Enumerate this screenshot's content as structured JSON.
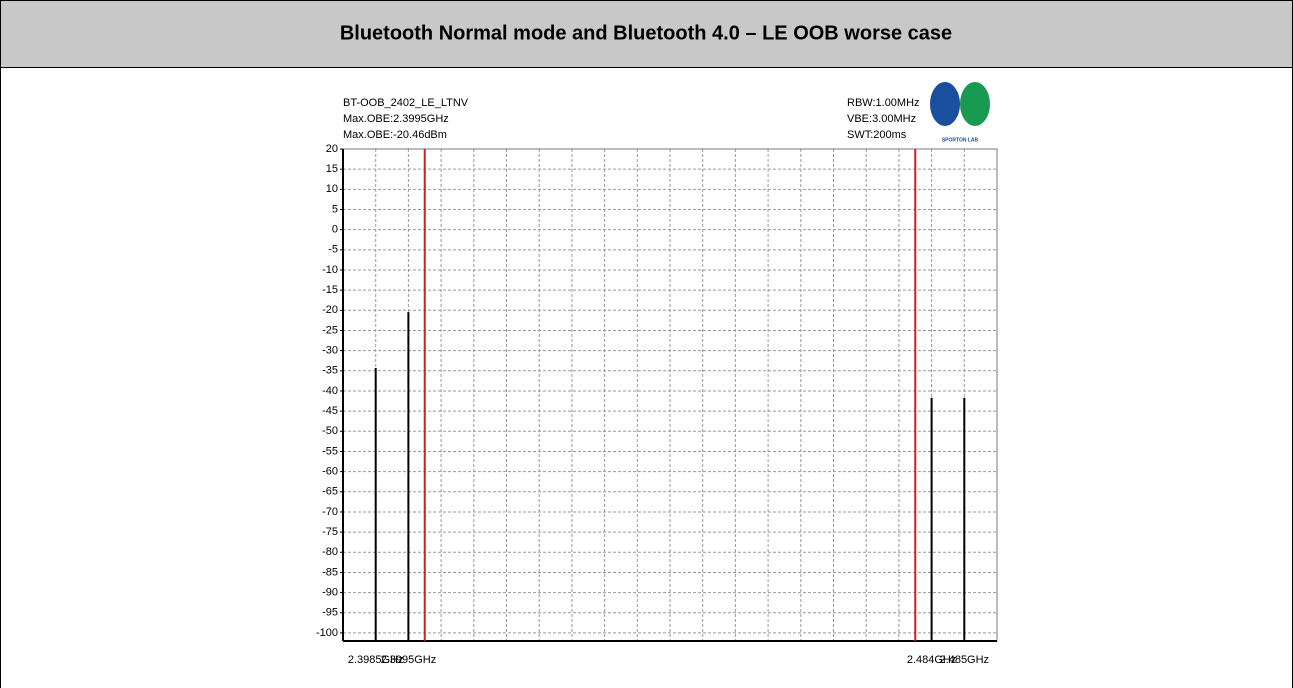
{
  "header": {
    "title": "Bluetooth Normal mode and Bluetooth 4.0 – LE OOB worse case"
  },
  "chart_data": {
    "type": "bar",
    "annotations": [
      "BT-OOB_2402_LE_LTNV",
      "Max.OBE:2.3995GHz",
      "Max.OBE:-20.46dBm"
    ],
    "settings_text": [
      "RBW:1.00MHz",
      "VBE:3.00MHz",
      "SWT:200ms"
    ],
    "logo_text": "SPORTON LAB",
    "categories": [
      "2.3985GHz",
      "2.3995GHz",
      "2.484GHz",
      "2.485GHz"
    ],
    "values": [
      -34.3,
      -20.46,
      -41.7,
      -41.7
    ],
    "color": "#000000",
    "limit_line_color": "#d02020",
    "ylim": [
      -102,
      20
    ],
    "yticks": [
      20,
      15,
      10,
      5,
      0,
      -5,
      -10,
      -15,
      -20,
      -25,
      -30,
      -35,
      -40,
      -45,
      -50,
      -55,
      -60,
      -65,
      -70,
      -75,
      -80,
      -85,
      -90,
      -95,
      -100
    ],
    "grid": true
  }
}
